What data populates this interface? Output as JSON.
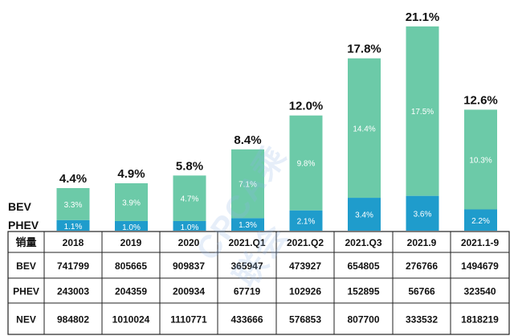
{
  "chart_data": {
    "type": "bar",
    "stacked": true,
    "categories": [
      "2018",
      "2019",
      "2020",
      "2021.Q1",
      "2021.Q2",
      "2021.Q3",
      "2021.9",
      "2021.1-9"
    ],
    "series": [
      {
        "name": "PHEV",
        "values": [
          1.1,
          1.0,
          1.0,
          1.3,
          2.1,
          3.4,
          3.6,
          2.2
        ],
        "labels": [
          "1.1%",
          "1.0%",
          "1.0%",
          "1.3%",
          "2.1%",
          "3.4%",
          "3.6%",
          "2.2%"
        ],
        "color": "#1f9ccc"
      },
      {
        "name": "BEV",
        "values": [
          3.3,
          3.9,
          4.7,
          7.1,
          9.8,
          14.4,
          17.5,
          10.3
        ],
        "labels": [
          "3.3%",
          "3.9%",
          "4.7%",
          "7.1%",
          "9.8%",
          "14.4%",
          "17.5%",
          "10.3%"
        ],
        "color": "#6ccaa8"
      }
    ],
    "totals": [
      4.4,
      4.9,
      5.8,
      8.4,
      12.0,
      17.8,
      21.1,
      12.6
    ],
    "total_labels": [
      "4.4%",
      "4.9%",
      "5.8%",
      "8.4%",
      "12.0%",
      "17.8%",
      "21.1%",
      "12.6%"
    ],
    "legend": {
      "BEV": "BEV",
      "PHEV": "PHEV"
    },
    "title": "",
    "xlabel": "",
    "ylabel": "",
    "ylim": [
      0,
      22
    ]
  },
  "table": {
    "header_label": "销量",
    "rows": [
      {
        "label": "BEV",
        "values": [
          "741799",
          "805665",
          "909837",
          "365947",
          "473927",
          "654805",
          "276766",
          "1494679"
        ]
      },
      {
        "label": "PHEV",
        "values": [
          "243003",
          "204359",
          "200934",
          "67719",
          "102926",
          "152895",
          "56766",
          "323540"
        ]
      },
      {
        "label": "NEV",
        "values": [
          "984802",
          "1010024",
          "1110771",
          "433666",
          "576853",
          "807700",
          "333532",
          "1818219"
        ]
      }
    ]
  },
  "watermark": {
    "text": "CPCA乘联会"
  }
}
